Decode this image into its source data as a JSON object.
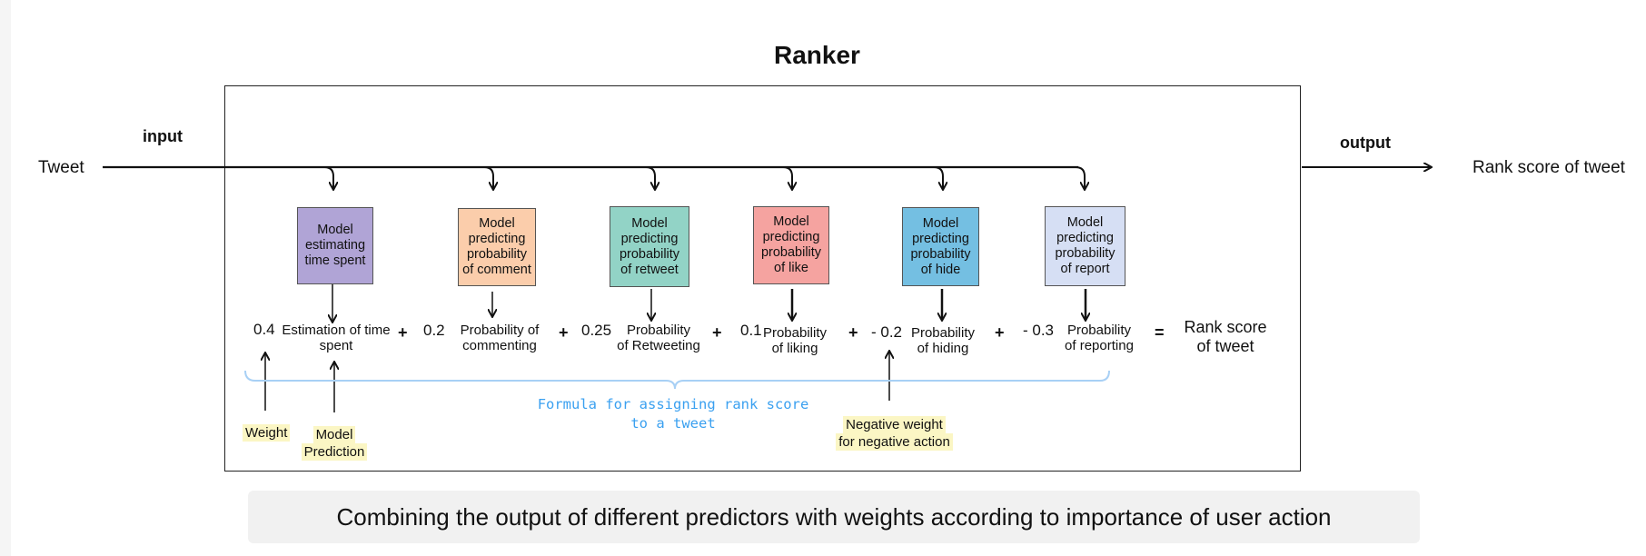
{
  "diagram": {
    "title": "Ranker",
    "input_label": "input",
    "output_label": "output",
    "source": "Tweet",
    "result": "Rank score of tweet",
    "models": [
      {
        "label_lines": [
          "Model",
          "estimating",
          "time spent"
        ],
        "fill": "#b0a4d6"
      },
      {
        "label_lines": [
          "Model",
          "predicting",
          "probability",
          "of comment"
        ],
        "fill": "#fbcdab"
      },
      {
        "label_lines": [
          "Model",
          "predicting",
          "probability",
          "of retweet"
        ],
        "fill": "#92d3c6"
      },
      {
        "label_lines": [
          "Model",
          "predicting",
          "probability",
          "of like"
        ],
        "fill": "#f5a3a0"
      },
      {
        "label_lines": [
          "Model",
          "predicting",
          "probability",
          "of hide"
        ],
        "fill": "#74bfe2"
      },
      {
        "label_lines": [
          "Model",
          "predicting",
          "probability",
          "of report"
        ],
        "fill": "#d6dff4"
      }
    ],
    "terms": [
      {
        "weight": "0.4",
        "label_lines": [
          "Estimation of time",
          "spent"
        ]
      },
      {
        "weight": "0.2",
        "label_lines": [
          "Probability of",
          "commenting"
        ]
      },
      {
        "weight": "0.25",
        "label_lines": [
          "Probability",
          "of Retweeting"
        ]
      },
      {
        "weight": "0.1",
        "label_lines": [
          "Probability",
          "of liking"
        ]
      },
      {
        "weight": "- 0.2",
        "label_lines": [
          "Probability",
          "of hiding"
        ]
      },
      {
        "weight": "- 0.3",
        "label_lines": [
          "Probability",
          "of reporting"
        ]
      }
    ],
    "operators": [
      "+",
      "+",
      "+",
      "+",
      "+",
      "="
    ],
    "equals_result_lines": [
      "Rank score",
      "of tweet"
    ],
    "formula_lines": [
      "Formula for assigning rank score",
      "to a tweet"
    ],
    "annotations": {
      "weight": "Weight",
      "model_prediction_lines": [
        "Model",
        "Prediction"
      ],
      "negative_weight_lines": [
        "Negative weight",
        "for negative action"
      ]
    }
  },
  "caption": "Combining the output of different predictors with weights according to importance of user action",
  "colors": {
    "formula_brace": "#a8d0f5",
    "formula_text": "#3aa0f0",
    "annotation_highlight": "#fbf6c4"
  }
}
